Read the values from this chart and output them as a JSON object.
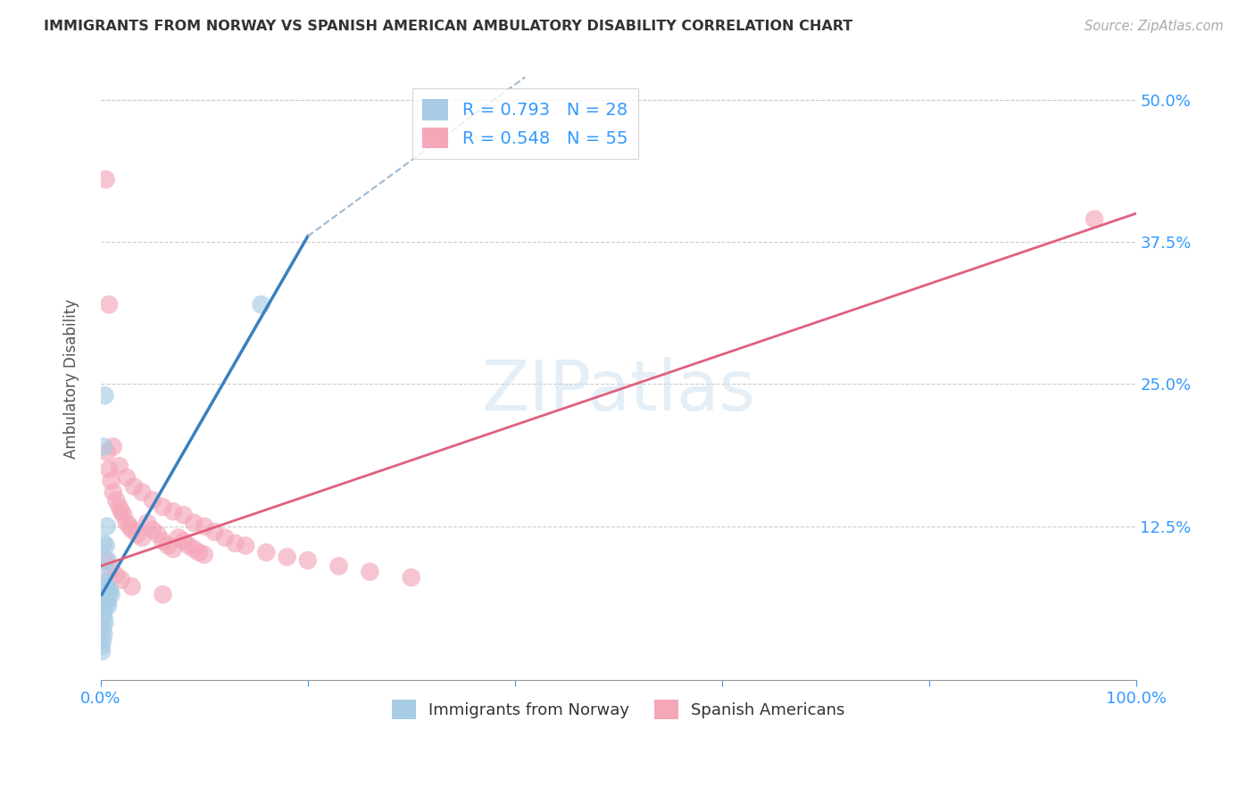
{
  "title": "IMMIGRANTS FROM NORWAY VS SPANISH AMERICAN AMBULATORY DISABILITY CORRELATION CHART",
  "source": "Source: ZipAtlas.com",
  "xlabel": "",
  "ylabel": "Ambulatory Disability",
  "watermark": "ZIPatlas",
  "xlim": [
    0.0,
    1.0
  ],
  "ylim": [
    -0.01,
    0.52
  ],
  "xticks": [
    0.0,
    0.2,
    0.4,
    0.6,
    0.8,
    1.0
  ],
  "xtick_labels": [
    "0.0%",
    "",
    "",
    "",
    "",
    "100.0%"
  ],
  "yticks": [
    0.0,
    0.125,
    0.25,
    0.375,
    0.5
  ],
  "ytick_labels": [
    "",
    "12.5%",
    "25.0%",
    "37.5%",
    "50.0%"
  ],
  "blue_R": 0.793,
  "blue_N": 28,
  "pink_R": 0.548,
  "pink_N": 55,
  "blue_color": "#a8cce4",
  "pink_color": "#f4a7b9",
  "blue_line_color": "#3a7fc1",
  "pink_line_color": "#e0607e",
  "dashed_line_color": "#a0b8d0",
  "legend_label_blue": "Immigrants from Norway",
  "legend_label_pink": "Spanish Americans",
  "blue_scatter_x": [
    0.003,
    0.004,
    0.005,
    0.005,
    0.006,
    0.007,
    0.008,
    0.009,
    0.01,
    0.003,
    0.004,
    0.004,
    0.005,
    0.005,
    0.006,
    0.006,
    0.007,
    0.007,
    0.002,
    0.003,
    0.003,
    0.004,
    0.002,
    0.003,
    0.002,
    0.001,
    0.001,
    0.155
  ],
  "blue_scatter_y": [
    0.195,
    0.24,
    0.108,
    0.06,
    0.125,
    0.095,
    0.07,
    0.068,
    0.065,
    0.11,
    0.085,
    0.075,
    0.072,
    0.068,
    0.065,
    0.06,
    0.058,
    0.055,
    0.055,
    0.05,
    0.045,
    0.04,
    0.035,
    0.03,
    0.025,
    0.02,
    0.015,
    0.32
  ],
  "pink_scatter_x": [
    0.005,
    0.006,
    0.008,
    0.01,
    0.012,
    0.015,
    0.018,
    0.02,
    0.022,
    0.025,
    0.028,
    0.03,
    0.035,
    0.04,
    0.045,
    0.05,
    0.055,
    0.06,
    0.065,
    0.07,
    0.075,
    0.08,
    0.085,
    0.09,
    0.095,
    0.1,
    0.008,
    0.012,
    0.018,
    0.025,
    0.032,
    0.04,
    0.05,
    0.06,
    0.07,
    0.08,
    0.09,
    0.1,
    0.11,
    0.12,
    0.13,
    0.14,
    0.16,
    0.18,
    0.2,
    0.23,
    0.26,
    0.3,
    0.005,
    0.01,
    0.015,
    0.02,
    0.03,
    0.06,
    0.96
  ],
  "pink_scatter_y": [
    0.43,
    0.19,
    0.175,
    0.165,
    0.155,
    0.148,
    0.142,
    0.138,
    0.135,
    0.128,
    0.125,
    0.122,
    0.118,
    0.115,
    0.128,
    0.122,
    0.118,
    0.112,
    0.108,
    0.105,
    0.115,
    0.112,
    0.108,
    0.105,
    0.102,
    0.1,
    0.32,
    0.195,
    0.178,
    0.168,
    0.16,
    0.155,
    0.148,
    0.142,
    0.138,
    0.135,
    0.128,
    0.125,
    0.12,
    0.115,
    0.11,
    0.108,
    0.102,
    0.098,
    0.095,
    0.09,
    0.085,
    0.08,
    0.095,
    0.088,
    0.082,
    0.078,
    0.072,
    0.065,
    0.395
  ],
  "blue_trend_x": [
    0.001,
    0.2
  ],
  "blue_trend_y": [
    0.065,
    0.38
  ],
  "pink_trend_x": [
    0.0,
    1.0
  ],
  "pink_trend_y": [
    0.09,
    0.4
  ],
  "dashed_line_x": [
    0.2,
    0.41
  ],
  "dashed_line_y": [
    0.38,
    0.52
  ]
}
